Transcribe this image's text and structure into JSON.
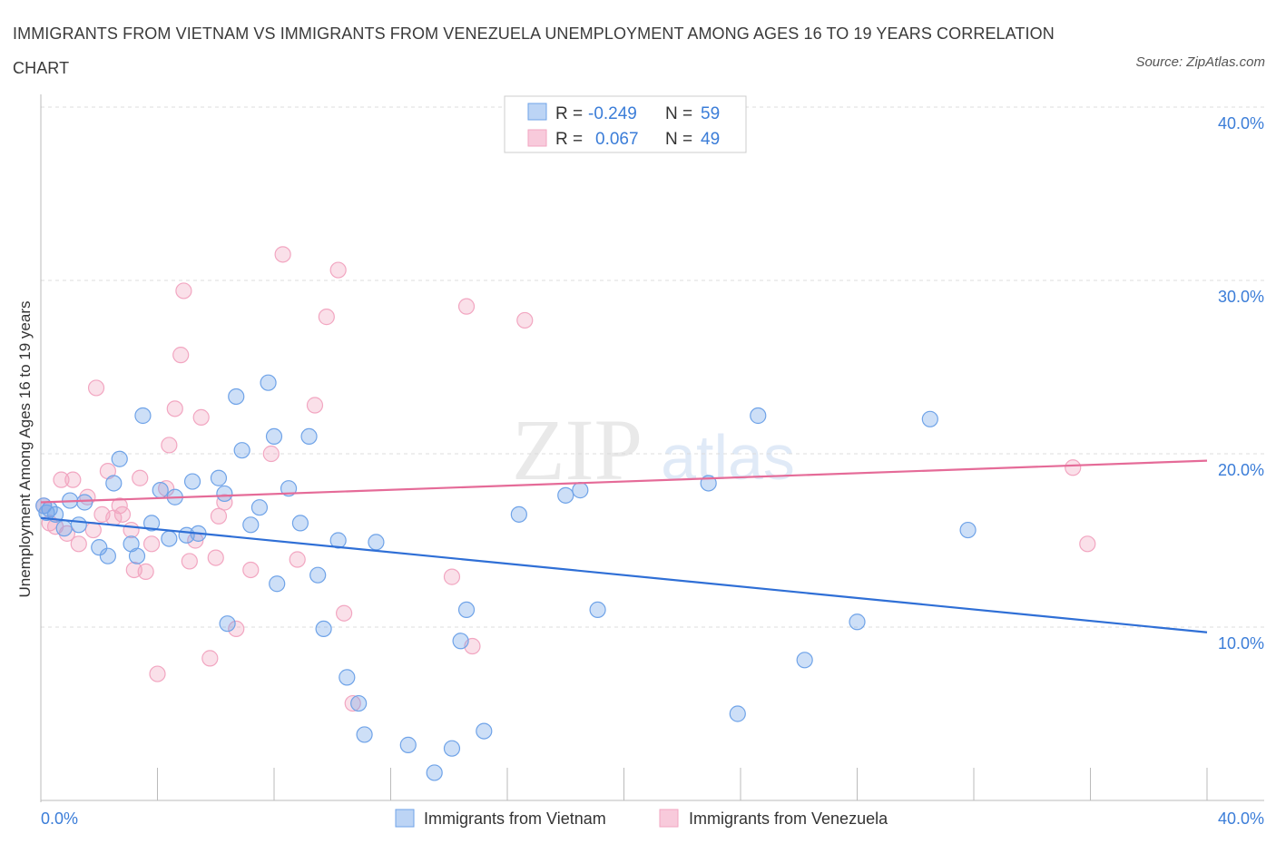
{
  "title": "IMMIGRANTS FROM VIETNAM VS IMMIGRANTS FROM VENEZUELA UNEMPLOYMENT AMONG AGES 16 TO 19 YEARS CORRELATION CHART",
  "source": "Source: ZipAtlas.com",
  "watermark": {
    "zip": "ZIP",
    "atlas": "atlas"
  },
  "legend_box": {
    "rows": [
      {
        "r_label": "R =",
        "r_value": "-0.249",
        "n_label": "N =",
        "n_value": "59"
      },
      {
        "r_label": "R =",
        "r_value": "0.067",
        "n_label": "N =",
        "n_value": "49"
      }
    ]
  },
  "chart_data": {
    "type": "scatter",
    "title": "IMMIGRANTS FROM VIETNAM VS IMMIGRANTS FROM VENEZUELA UNEMPLOYMENT AMONG AGES 16 TO 19 YEARS CORRELATION CHART",
    "xlabel": "",
    "ylabel": "Unemployment Among Ages 16 to 19 years",
    "xlim": [
      0,
      40
    ],
    "ylim": [
      0,
      40
    ],
    "x_tick_labels": [
      "0.0%",
      "40.0%"
    ],
    "y_tick_labels": [
      "10.0%",
      "20.0%",
      "30.0%",
      "40.0%"
    ],
    "y_ticks": [
      10,
      20,
      30,
      40
    ],
    "grid": true,
    "legend_position": "bottom",
    "series": [
      {
        "name": "Immigrants from Vietnam",
        "color": "#6fa3e8",
        "line_color": "#2f6fd6",
        "R": -0.249,
        "N": 59,
        "trend": [
          [
            0,
            16.3
          ],
          [
            40,
            9.7
          ]
        ],
        "points": [
          [
            0.1,
            17.0
          ],
          [
            0.3,
            16.8
          ],
          [
            0.5,
            16.5
          ],
          [
            0.8,
            15.7
          ],
          [
            1.0,
            17.3
          ],
          [
            1.3,
            15.9
          ],
          [
            1.5,
            17.2
          ],
          [
            2.0,
            14.6
          ],
          [
            2.3,
            14.1
          ],
          [
            2.5,
            18.3
          ],
          [
            2.7,
            19.7
          ],
          [
            3.1,
            14.8
          ],
          [
            3.3,
            14.1
          ],
          [
            3.5,
            22.2
          ],
          [
            3.8,
            16.0
          ],
          [
            4.1,
            17.9
          ],
          [
            4.4,
            15.1
          ],
          [
            4.6,
            17.5
          ],
          [
            5.0,
            15.3
          ],
          [
            5.2,
            18.4
          ],
          [
            5.4,
            15.4
          ],
          [
            6.1,
            18.6
          ],
          [
            6.3,
            17.7
          ],
          [
            6.4,
            10.2
          ],
          [
            6.7,
            23.3
          ],
          [
            6.9,
            20.2
          ],
          [
            7.2,
            15.9
          ],
          [
            7.5,
            16.9
          ],
          [
            7.8,
            24.1
          ],
          [
            8.0,
            21.0
          ],
          [
            8.1,
            12.5
          ],
          [
            8.5,
            18.0
          ],
          [
            8.9,
            16.0
          ],
          [
            9.2,
            21.0
          ],
          [
            9.5,
            13.0
          ],
          [
            9.7,
            9.9
          ],
          [
            10.2,
            15.0
          ],
          [
            10.5,
            7.1
          ],
          [
            10.9,
            5.6
          ],
          [
            11.1,
            3.8
          ],
          [
            11.5,
            14.9
          ],
          [
            12.6,
            3.2
          ],
          [
            13.5,
            1.6
          ],
          [
            14.1,
            3.0
          ],
          [
            14.4,
            9.2
          ],
          [
            14.6,
            11.0
          ],
          [
            15.2,
            4.0
          ],
          [
            16.4,
            16.5
          ],
          [
            18.0,
            17.6
          ],
          [
            18.5,
            17.9
          ],
          [
            19.1,
            11.0
          ],
          [
            22.9,
            18.3
          ],
          [
            23.9,
            5.0
          ],
          [
            24.6,
            22.2
          ],
          [
            26.2,
            8.1
          ],
          [
            28.0,
            10.3
          ],
          [
            30.5,
            22.0
          ],
          [
            31.8,
            15.6
          ],
          [
            0.2,
            16.6
          ]
        ]
      },
      {
        "name": "Immigrants from Venezuela",
        "color": "#f2a6c1",
        "line_color": "#e56b98",
        "R": 0.067,
        "N": 49,
        "trend": [
          [
            0,
            17.2
          ],
          [
            40,
            19.6
          ]
        ],
        "points": [
          [
            0.1,
            17.0
          ],
          [
            0.3,
            16.0
          ],
          [
            0.5,
            15.8
          ],
          [
            0.7,
            18.5
          ],
          [
            0.9,
            15.4
          ],
          [
            1.1,
            18.5
          ],
          [
            1.3,
            14.8
          ],
          [
            1.6,
            17.5
          ],
          [
            1.8,
            15.6
          ],
          [
            1.9,
            23.8
          ],
          [
            2.1,
            16.5
          ],
          [
            2.3,
            19.0
          ],
          [
            2.5,
            16.3
          ],
          [
            2.7,
            17.0
          ],
          [
            2.8,
            16.5
          ],
          [
            3.1,
            15.6
          ],
          [
            3.2,
            13.3
          ],
          [
            3.4,
            18.6
          ],
          [
            3.6,
            13.2
          ],
          [
            3.8,
            14.8
          ],
          [
            4.0,
            7.3
          ],
          [
            4.3,
            18.0
          ],
          [
            4.4,
            20.5
          ],
          [
            4.6,
            22.6
          ],
          [
            4.8,
            25.7
          ],
          [
            4.9,
            29.4
          ],
          [
            5.1,
            13.8
          ],
          [
            5.3,
            15.0
          ],
          [
            5.5,
            22.1
          ],
          [
            5.8,
            8.2
          ],
          [
            6.0,
            14.0
          ],
          [
            6.1,
            16.4
          ],
          [
            6.3,
            17.2
          ],
          [
            6.7,
            9.9
          ],
          [
            7.2,
            13.3
          ],
          [
            7.9,
            20.0
          ],
          [
            8.3,
            31.5
          ],
          [
            8.8,
            13.9
          ],
          [
            9.4,
            22.8
          ],
          [
            9.8,
            27.9
          ],
          [
            10.2,
            30.6
          ],
          [
            10.4,
            10.8
          ],
          [
            10.7,
            5.6
          ],
          [
            14.1,
            12.9
          ],
          [
            14.6,
            28.5
          ],
          [
            14.8,
            8.9
          ],
          [
            16.6,
            27.7
          ],
          [
            35.4,
            19.2
          ],
          [
            35.9,
            14.8
          ]
        ]
      }
    ]
  },
  "bottom_legend": [
    "Immigrants from Vietnam",
    "Immigrants from Venezuela"
  ]
}
